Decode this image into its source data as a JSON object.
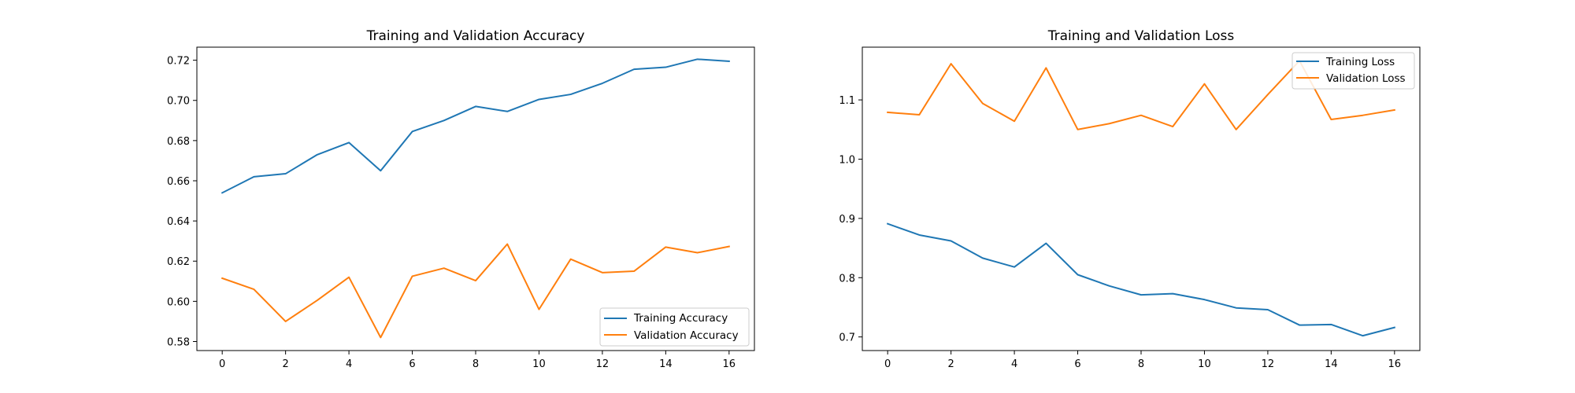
{
  "colors": {
    "training": "#1f77b4",
    "validation": "#ff7f0e",
    "background": "#ffffff",
    "axes": "#000000",
    "legend_border": "#cccccc"
  },
  "chart_data": [
    {
      "type": "line",
      "title": "Training and Validation Accuracy",
      "xlabel": "",
      "ylabel": "",
      "x": [
        0,
        1,
        2,
        3,
        4,
        5,
        6,
        7,
        8,
        9,
        10,
        11,
        12,
        13,
        14,
        15,
        16
      ],
      "xlim": [
        -0.8,
        16.8
      ],
      "ylim": [
        0.5755,
        0.7265
      ],
      "xticks": [
        0,
        2,
        4,
        6,
        8,
        10,
        12,
        14,
        16
      ],
      "xtick_labels": [
        "0",
        "2",
        "4",
        "6",
        "8",
        "10",
        "12",
        "14",
        "16"
      ],
      "yticks": [
        0.58,
        0.6,
        0.62,
        0.64,
        0.66,
        0.68,
        0.7,
        0.72
      ],
      "ytick_labels": [
        "0.58",
        "0.60",
        "0.62",
        "0.64",
        "0.66",
        "0.68",
        "0.70",
        "0.72"
      ],
      "grid": false,
      "legend_position": "lower right",
      "series": [
        {
          "name": "Training Accuracy",
          "color": "#1f77b4",
          "values": [
            0.654,
            0.662,
            0.6635,
            0.673,
            0.679,
            0.665,
            0.6845,
            0.69,
            0.697,
            0.6945,
            0.7005,
            0.703,
            0.7085,
            0.7155,
            0.7165,
            0.7205,
            0.7195
          ]
        },
        {
          "name": "Validation Accuracy",
          "color": "#ff7f0e",
          "values": [
            0.6115,
            0.606,
            0.59,
            0.6005,
            0.612,
            0.582,
            0.6125,
            0.6165,
            0.6103,
            0.6285,
            0.596,
            0.621,
            0.6143,
            0.615,
            0.627,
            0.6242,
            0.6273
          ]
        }
      ]
    },
    {
      "type": "line",
      "title": "Training and Validation Loss",
      "xlabel": "",
      "ylabel": "",
      "x": [
        0,
        1,
        2,
        3,
        4,
        5,
        6,
        7,
        8,
        9,
        10,
        11,
        12,
        13,
        14,
        15,
        16
      ],
      "xlim": [
        -0.8,
        16.8
      ],
      "ylim": [
        0.677,
        1.189
      ],
      "xticks": [
        0,
        2,
        4,
        6,
        8,
        10,
        12,
        14,
        16
      ],
      "xtick_labels": [
        "0",
        "2",
        "4",
        "6",
        "8",
        "10",
        "12",
        "14",
        "16"
      ],
      "yticks": [
        0.7,
        0.8,
        0.9,
        1.0,
        1.1
      ],
      "ytick_labels": [
        "0.7",
        "0.8",
        "0.9",
        "1.0",
        "1.1"
      ],
      "grid": false,
      "legend_position": "upper right",
      "series": [
        {
          "name": "Training Loss",
          "color": "#1f77b4",
          "values": [
            0.891,
            0.872,
            0.862,
            0.833,
            0.818,
            0.858,
            0.805,
            0.786,
            0.771,
            0.773,
            0.763,
            0.749,
            0.746,
            0.72,
            0.721,
            0.702,
            0.716
          ]
        },
        {
          "name": "Validation Loss",
          "color": "#ff7f0e",
          "values": [
            1.079,
            1.075,
            1.161,
            1.094,
            1.064,
            1.154,
            1.05,
            1.06,
            1.074,
            1.055,
            1.127,
            1.05,
            1.109,
            1.166,
            1.067,
            1.074,
            1.083
          ]
        }
      ]
    }
  ]
}
